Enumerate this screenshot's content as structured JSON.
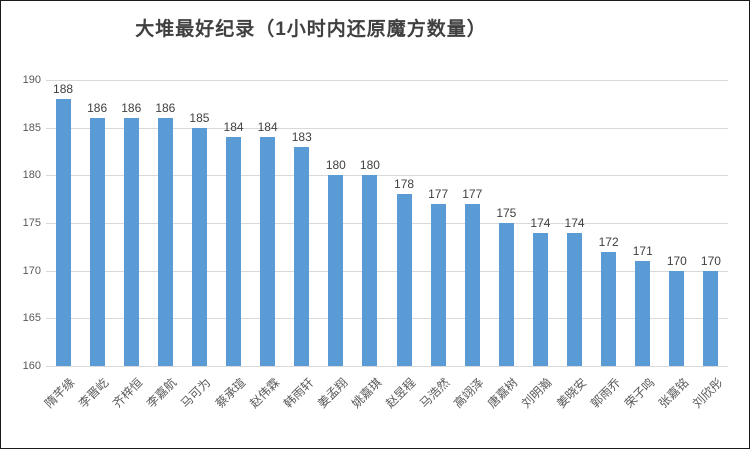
{
  "title": "大堆最好纪录（1小时内还原魔方数量）",
  "colors": {
    "bar": "#5b9bd5",
    "gridline": "#d9d9d9",
    "axis_text": "#595959",
    "data_label": "#404040",
    "title_text": "#404040",
    "border": "#1a1a1a",
    "background": "#ffffff"
  },
  "chart_data": {
    "type": "bar",
    "title": "大堆最好纪录（1小时内还原魔方数量）",
    "categories": [
      "隋芊缘",
      "李晋屹",
      "齐梓恒",
      "李嘉航",
      "马可为",
      "蔡承瑄",
      "赵伟霖",
      "韩雨轩",
      "姜孟翔",
      "姚嘉琪",
      "赵昱程",
      "马浩然",
      "高翊泽",
      "唐嘉树",
      "刘明瀚",
      "姜晓安",
      "郭雨乔",
      "荣子鸣",
      "张嘉铭",
      "刘欣彤"
    ],
    "values": [
      188,
      186,
      186,
      186,
      185,
      184,
      184,
      183,
      180,
      180,
      178,
      177,
      177,
      175,
      174,
      174,
      172,
      171,
      170,
      170
    ],
    "xlabel": "",
    "ylabel": "",
    "ylim": [
      160,
      190
    ],
    "yticks": [
      160,
      165,
      170,
      175,
      180,
      185,
      190
    ],
    "grid": true,
    "data_labels": true,
    "legend": false,
    "x_tick_rotation_deg": 45
  }
}
